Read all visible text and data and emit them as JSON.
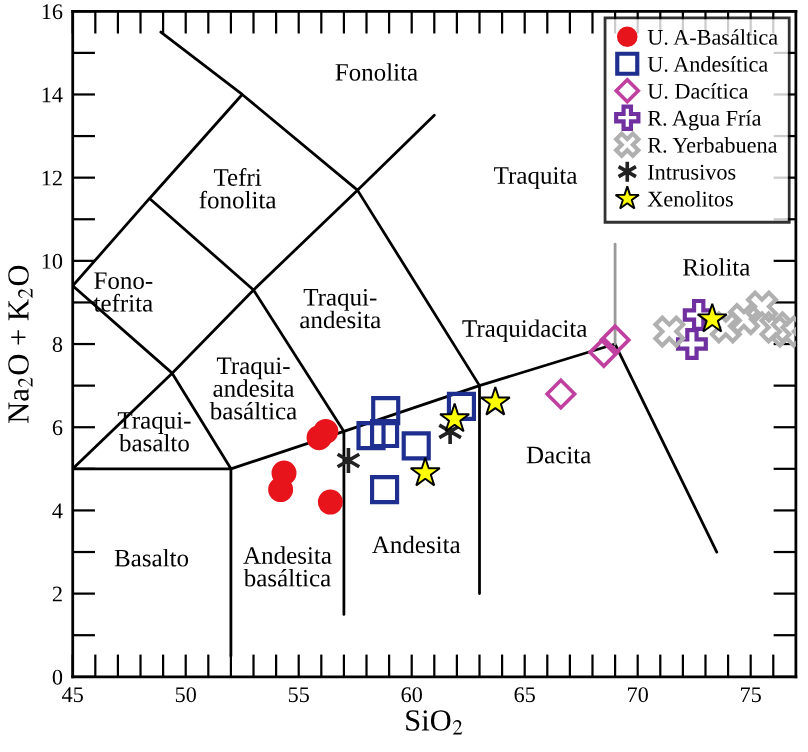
{
  "chart_data": {
    "type": "scatter",
    "xlabel": "SiO$_{2}$",
    "ylabel": "Na$_{2}$O + K$_{2}$O",
    "xlim": [
      45,
      77
    ],
    "ylim": [
      0,
      16
    ],
    "xticks": [
      45,
      {
        "value": 46,
        "label": null
      },
      {
        "value": 47,
        "label": null
      },
      {
        "value": 48,
        "label": null
      },
      {
        "value": 49,
        "label": null
      },
      50,
      {
        "value": 51,
        "label": null
      },
      {
        "value": 52,
        "label": null
      },
      {
        "value": 53,
        "label": null
      },
      {
        "value": 54,
        "label": null
      },
      55,
      {
        "value": 56,
        "label": null
      },
      {
        "value": 57,
        "label": null
      },
      {
        "value": 58,
        "label": null
      },
      {
        "value": 59,
        "label": null
      },
      60,
      {
        "value": 61,
        "label": null
      },
      {
        "value": 62,
        "label": null
      },
      {
        "value": 63,
        "label": null
      },
      {
        "value": 64,
        "label": null
      },
      65,
      {
        "value": 66,
        "label": null
      },
      {
        "value": 67,
        "label": null
      },
      {
        "value": 68,
        "label": null
      },
      {
        "value": 69,
        "label": null
      },
      70,
      {
        "value": 71,
        "label": null
      },
      {
        "value": 72,
        "label": null
      },
      {
        "value": 73,
        "label": null
      },
      {
        "value": 74,
        "label": null
      },
      75,
      {
        "value": 76,
        "label": null
      }
    ],
    "yticks": [
      0,
      {
        "value": 1,
        "label": null
      },
      2,
      {
        "value": 3,
        "label": null
      },
      4,
      {
        "value": 5,
        "label": null
      },
      6,
      {
        "value": 7,
        "label": null
      },
      8,
      {
        "value": 9,
        "label": null
      },
      10,
      {
        "value": 11,
        "label": null
      },
      12,
      {
        "value": 13,
        "label": null
      },
      14,
      {
        "value": 15,
        "label": null
      },
      16
    ],
    "grid": false,
    "legend": "top right",
    "series": [
      {
        "type": "line",
        "color": "#000000",
        "x": [
          45,
          52,
          57,
          63,
          69,
          73.5,
          null,
          52,
          52,
          null,
          57,
          57,
          null,
          63,
          63,
          null,
          45,
          49.4,
          52,
          null,
          49.4,
          53,
          57.6,
          61,
          null,
          45,
          49.4,
          null,
          53,
          57,
          null,
          57.6,
          63,
          null,
          45,
          48.4,
          53,
          null,
          48.4,
          52.5,
          null,
          48.9,
          52.5,
          57.6
        ],
        "values": [
          5,
          5,
          5.9,
          7,
          8,
          3,
          null,
          0.5,
          5,
          null,
          1.5,
          5.9,
          null,
          2,
          7,
          null,
          5,
          7.3,
          5,
          null,
          7.3,
          9.3,
          11.7,
          13.5,
          null,
          9.4,
          7.3,
          null,
          9.3,
          5.9,
          null,
          11.7,
          7,
          null,
          9.4,
          11.5,
          9.3,
          null,
          11.5,
          14,
          null,
          15.5,
          14,
          11.7
        ]
      },
      {
        "type": "line",
        "color": "#999999",
        "x": [
          69,
          69
        ],
        "values": [
          8,
          10.4
        ]
      },
      {
        "name": "U. A-Basáltica",
        "color": "#e8141c",
        "marker": "circle",
        "x": [
          54.35,
          54.2,
          55.9,
          56.2,
          56.4
        ],
        "values": [
          4.9,
          4.5,
          5.75,
          5.9,
          4.2
        ]
      },
      {
        "name": "U. Andesítica",
        "color": "#1f2f8f",
        "marker": "square",
        "x": [
          58.85,
          58.2,
          58.8,
          60.2,
          58.8,
          62.2
        ],
        "values": [
          6.4,
          5.8,
          5.85,
          5.55,
          4.5,
          6.5
        ]
      },
      {
        "name": "U. Dacítica",
        "color": "#c040a0",
        "marker": "diamond",
        "x": [
          66.6,
          68.5,
          69.0
        ],
        "values": [
          6.8,
          7.8,
          8.1
        ]
      },
      {
        "name": "R. Agua Fría",
        "color": "#7030a0",
        "marker": "plus",
        "x": [
          72.7,
          72.4
        ],
        "values": [
          8.7,
          8.0
        ]
      },
      {
        "name": "R. Yerbabuena",
        "color": "#b0b0b0",
        "marker": "x",
        "x": [
          71.4,
          73.9,
          74.7,
          75.5,
          76.1,
          76.6
        ],
        "values": [
          8.3,
          8.4,
          8.6,
          8.9,
          8.4,
          8.3
        ]
      },
      {
        "name": "Intrusivos",
        "color": "#222222",
        "marker": "cross",
        "x": [
          57.2,
          61.7
        ],
        "values": [
          5.2,
          5.9
        ]
      },
      {
        "name": "Xenolitos",
        "color": "#ffff00",
        "marker": "star",
        "x": [
          60.6,
          61.9,
          63.7,
          73.3
        ],
        "values": [
          4.9,
          6.2,
          6.6,
          8.6
        ]
      }
    ],
    "annotations": [
      "Fonolita",
      "Tefri\nfonolita",
      "Traquita",
      "Fono-\ntefrita",
      "Traqui-\nandesita",
      "Traquidacita",
      "Riolita",
      "Traqui-\nandesita\nbasáltica",
      "Traqui-\nbasalto",
      "Basalto",
      "Andesita\nbasáltica",
      "Andesita",
      "Dacita"
    ]
  }
}
